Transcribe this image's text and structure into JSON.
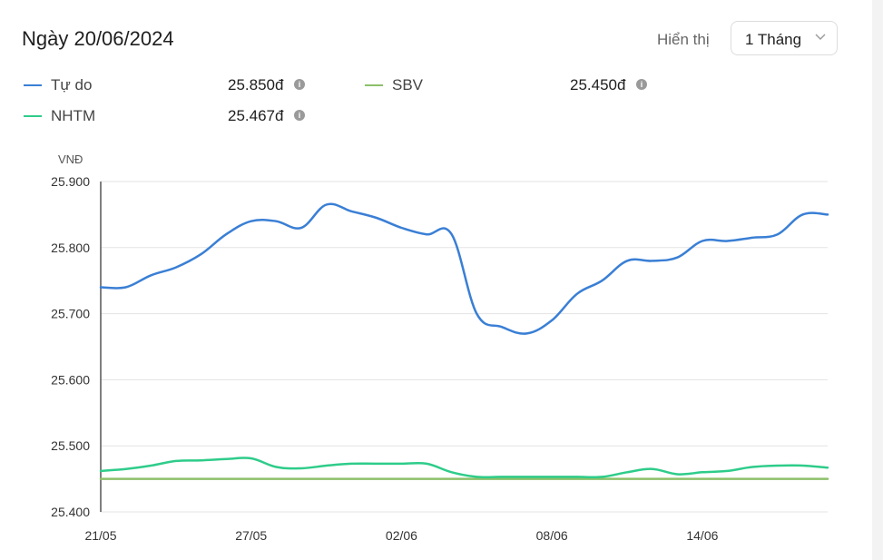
{
  "header": {
    "title": "Ngày 20/06/2024",
    "display_label": "Hiển thị",
    "period_value": "1 Tháng"
  },
  "legend": [
    {
      "name": "Tự do",
      "value": "25.850đ",
      "color": "#3a7fd5"
    },
    {
      "name": "SBV",
      "value": "25.450đ",
      "color": "#8cc06a"
    },
    {
      "name": "NHTM",
      "value": "25.467đ",
      "color": "#2ecc8a"
    }
  ],
  "icons": {
    "info": "info-icon",
    "dropdown": "chevron-down-icon"
  },
  "chart_data": {
    "type": "line",
    "ylabel": "VNĐ",
    "ylim": [
      25400,
      25900
    ],
    "yticks": [
      "25.900",
      "25.800",
      "25.700",
      "25.600",
      "25.500",
      "25.400"
    ],
    "ytick_values": [
      25900,
      25800,
      25700,
      25600,
      25500,
      25400
    ],
    "xticks": [
      "21/05",
      "27/05",
      "02/06",
      "08/06",
      "14/06"
    ],
    "xtick_index": [
      0,
      6,
      12,
      18,
      24
    ],
    "grid": true,
    "series": [
      {
        "name": "Tự do",
        "color": "#3a7fd5",
        "values": [
          25740,
          25740,
          25758,
          25770,
          25790,
          25820,
          25840,
          25840,
          25830,
          25865,
          25855,
          25845,
          25830,
          25820,
          25820,
          25700,
          25680,
          25670,
          25690,
          25730,
          25750,
          25780,
          25780,
          25785,
          25810,
          25810,
          25815,
          25820,
          25850,
          25850
        ]
      },
      {
        "name": "SBV",
        "color": "#8cc06a",
        "values": [
          25450,
          25450,
          25450,
          25450,
          25450,
          25450,
          25450,
          25450,
          25450,
          25450,
          25450,
          25450,
          25450,
          25450,
          25450,
          25450,
          25450,
          25450,
          25450,
          25450,
          25450,
          25450,
          25450,
          25450,
          25450,
          25450,
          25450,
          25450,
          25450,
          25450
        ]
      },
      {
        "name": "NHTM",
        "color": "#2ecc8a",
        "values": [
          25462,
          25465,
          25470,
          25477,
          25478,
          25480,
          25481,
          25468,
          25466,
          25470,
          25473,
          25473,
          25473,
          25473,
          25460,
          25453,
          25453,
          25453,
          25453,
          25453,
          25453,
          25460,
          25465,
          25457,
          25460,
          25462,
          25468,
          25470,
          25470,
          25467
        ]
      }
    ]
  }
}
